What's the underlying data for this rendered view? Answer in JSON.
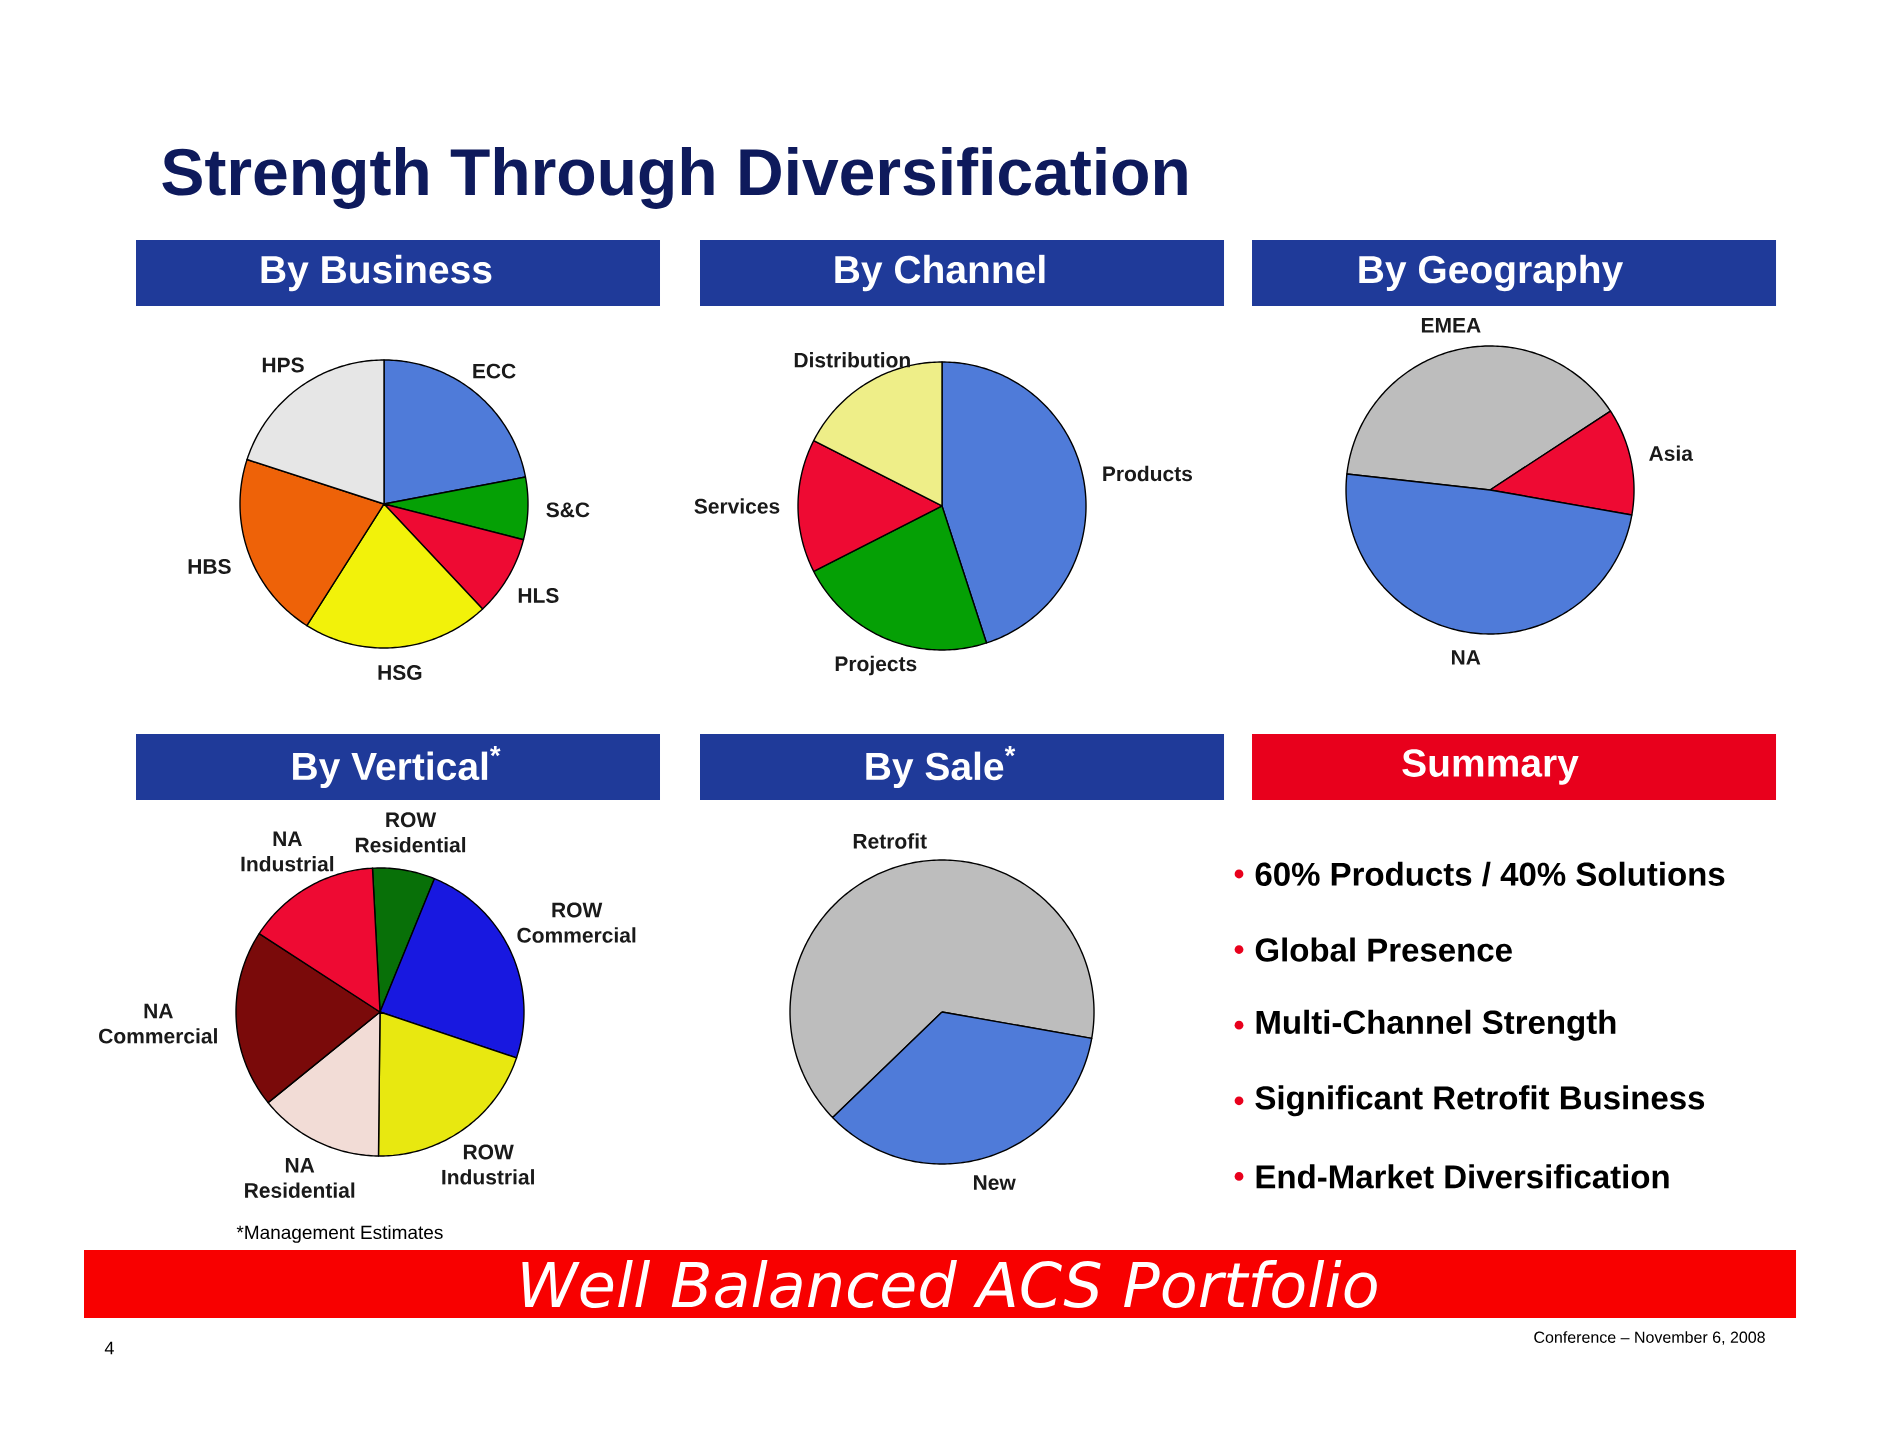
{
  "chart_data": [
    {
      "type": "other",
      "title": "Strength Through Diversification",
      "annotations": [
        "Well Balanced ACS Portfolio",
        "4",
        "Conference – November 6, 2008"
      ]
    },
    {
      "type": "pie",
      "title": "By Business",
      "categories": [
        "ECC",
        "S&C",
        "HLS",
        "HSG",
        "HBS",
        "HPS"
      ],
      "values": [
        22,
        7,
        9,
        21,
        21,
        20
      ],
      "colors": [
        "#4f7bd9",
        "#05a005",
        "#ee0a33",
        "#f2f20a",
        "#ee6208",
        "#e6e6e6"
      ]
    },
    {
      "type": "pie",
      "title": "By Channel",
      "categories": [
        "Products",
        "Projects",
        "Services",
        "Distribution"
      ],
      "values": [
        45,
        22.5,
        15,
        17.5
      ],
      "colors": [
        "#4f7bd9",
        "#05a005",
        "#ee0a33",
        "#eeee88"
      ]
    },
    {
      "type": "pie",
      "title": "By Geography",
      "categories": [
        "EMEA",
        "Asia",
        "NA"
      ],
      "values": [
        39,
        12,
        49
      ],
      "colors": [
        "#bdbdbd",
        "#ee0a33",
        "#4f7bd9"
      ]
    },
    {
      "type": "pie",
      "title": "By Vertical$^{*}$",
      "categories": [
        "ROW Residential",
        "ROW Commercial",
        "ROW Industrial",
        "NA Residential",
        "NA Commercial",
        "NA Industrial"
      ],
      "values": [
        7,
        24,
        20,
        14,
        20,
        15
      ],
      "colors": [
        "#087008",
        "#1818e0",
        "#e8e810",
        "#f2dcd6",
        "#7a0a0a",
        "#ee0a33"
      ],
      "annotations": [
        "*Management Estimates"
      ]
    },
    {
      "type": "pie",
      "title": "By Sale$^{*}$",
      "categories": [
        "Retrofit",
        "New"
      ],
      "values": [
        65,
        35
      ],
      "colors": [
        "#bdbdbd",
        "#4f7bd9"
      ]
    },
    {
      "type": "other",
      "title": "Summary",
      "annotations": [
        "60% Products / 40% Solutions",
        "Global Presence",
        "Multi-Channel Strength",
        "Significant Retrofit Business",
        "End-Market Diversification"
      ]
    }
  ]
}
